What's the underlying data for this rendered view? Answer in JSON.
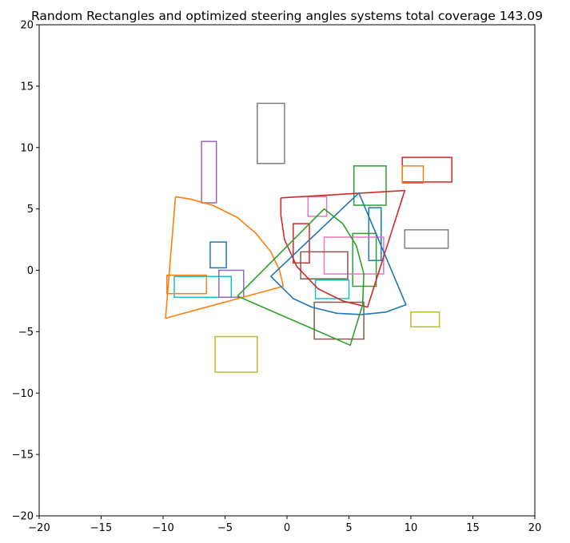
{
  "chart_data": {
    "type": "scatter",
    "title": "Random Rectangles and optimized steering angles systems total coverage 143.09",
    "xlabel": "",
    "ylabel": "",
    "xlim": [
      -20,
      20
    ],
    "ylim": [
      -20,
      20
    ],
    "xticks": [
      -20,
      -15,
      -10,
      -5,
      0,
      5,
      10,
      15,
      20
    ],
    "yticks": [
      -20,
      -15,
      -10,
      -5,
      0,
      5,
      10,
      15,
      20
    ],
    "xtick_labels": [
      "−20",
      "−15",
      "−10",
      "−5",
      "0",
      "5",
      "10",
      "15",
      "20"
    ],
    "ytick_labels": [
      "−20",
      "−15",
      "−10",
      "−5",
      "0",
      "5",
      "10",
      "15",
      "20"
    ],
    "grid": false,
    "colors": {
      "blue": "#1f77b4",
      "orange": "#ff7f0e",
      "green": "#2ca02c",
      "red": "#d62728",
      "purple": "#9467bd",
      "brown": "#8c564b",
      "pink": "#e377c2",
      "gray": "#7f7f7f",
      "olive": "#bcbd22",
      "cyan": "#17becf"
    },
    "rectangles": [
      {
        "x0": 9.3,
        "y0": 7.2,
        "x1": 13.3,
        "y1": 9.2,
        "color": "#d62728"
      },
      {
        "x0": 9.3,
        "y0": 7.1,
        "x1": 11.0,
        "y1": 8.5,
        "color": "#ff7f0e"
      },
      {
        "x0": 5.4,
        "y0": 5.3,
        "x1": 8.0,
        "y1": 8.5,
        "color": "#2ca02c"
      },
      {
        "x0": 1.7,
        "y0": 4.4,
        "x1": 3.2,
        "y1": 6.0,
        "color": "#e377c2"
      },
      {
        "x0": 9.5,
        "y0": 1.8,
        "x1": 13.0,
        "y1": 3.3,
        "color": "#7f7f7f"
      },
      {
        "x0": 6.6,
        "y0": 0.8,
        "x1": 7.6,
        "y1": 5.1,
        "color": "#1f77b4"
      },
      {
        "x0": 0.5,
        "y0": 0.6,
        "x1": 1.8,
        "y1": 3.8,
        "color": "#d62728"
      },
      {
        "x0": 5.3,
        "y0": -1.3,
        "x1": 7.2,
        "y1": 3.0,
        "color": "#2ca02c"
      },
      {
        "x0": 3.0,
        "y0": -0.3,
        "x1": 7.8,
        "y1": 2.7,
        "color": "#e377c2"
      },
      {
        "x0": 1.1,
        "y0": -0.7,
        "x1": 4.9,
        "y1": 1.5,
        "color": "#8c564b"
      },
      {
        "x0": 2.3,
        "y0": -2.3,
        "x1": 5.0,
        "y1": -0.8,
        "color": "#17becf"
      },
      {
        "x0": 2.2,
        "y0": -5.6,
        "x1": 6.2,
        "y1": -2.6,
        "color": "#8c564b"
      },
      {
        "x0": 10.0,
        "y0": -4.6,
        "x1": 12.3,
        "y1": -3.4,
        "color": "#bcbd22"
      },
      {
        "x0": -5.8,
        "y0": -8.3,
        "x1": -2.4,
        "y1": -5.4,
        "color": "#bcbd22"
      },
      {
        "x0": -9.1,
        "y0": -2.2,
        "x1": -4.5,
        "y1": -0.5,
        "color": "#17becf"
      },
      {
        "x0": -9.7,
        "y0": -1.9,
        "x1": -6.5,
        "y1": -0.4,
        "color": "#ff7f0e"
      },
      {
        "x0": -5.5,
        "y0": -2.2,
        "x1": -3.5,
        "y1": 0.0,
        "color": "#9467bd"
      },
      {
        "x0": -6.2,
        "y0": 0.2,
        "x1": -4.9,
        "y1": 2.3,
        "color": "#1f77b4"
      },
      {
        "x0": -6.9,
        "y0": 5.5,
        "x1": -5.7,
        "y1": 10.5,
        "color": "#9467bd"
      },
      {
        "x0": -2.4,
        "y0": 8.7,
        "x1": -0.2,
        "y1": 13.6,
        "color": "#7f7f7f"
      }
    ],
    "sectors": [
      {
        "color": "#ff7f0e",
        "vertex": [
          -0.3,
          -1.3
        ],
        "points": [
          [
            -9.0,
            6.0
          ],
          [
            -7.8,
            5.8
          ],
          [
            -6.0,
            5.3
          ],
          [
            -4.0,
            4.3
          ],
          [
            -2.5,
            3.0
          ],
          [
            -1.3,
            1.5
          ],
          [
            -0.6,
            0.0
          ],
          [
            -0.3,
            -1.3
          ],
          [
            -9.8,
            -3.9
          ],
          [
            -9.0,
            6.0
          ]
        ]
      },
      {
        "color": "#d62728",
        "vertex": [
          6.5,
          -3.0
        ],
        "points": [
          [
            -0.5,
            5.9
          ],
          [
            9.5,
            6.5
          ],
          [
            6.5,
            -3.0
          ],
          [
            4.5,
            -2.5
          ],
          [
            2.5,
            -1.5
          ],
          [
            0.8,
            0.3
          ],
          [
            -0.2,
            2.5
          ],
          [
            -0.5,
            4.5
          ],
          [
            -0.5,
            5.9
          ]
        ]
      },
      {
        "color": "#1f77b4",
        "vertex": [
          5.8,
          6.3
        ],
        "points": [
          [
            5.8,
            6.3
          ],
          [
            9.6,
            -2.8
          ],
          [
            8.0,
            -3.4
          ],
          [
            6.0,
            -3.6
          ],
          [
            4.0,
            -3.5
          ],
          [
            2.0,
            -3.0
          ],
          [
            0.5,
            -2.3
          ],
          [
            -1.3,
            -0.5
          ],
          [
            5.8,
            6.3
          ]
        ]
      },
      {
        "color": "#2ca02c",
        "vertex": [
          -4.0,
          -2.1
        ],
        "points": [
          [
            -4.0,
            -2.1
          ],
          [
            3.0,
            5.0
          ],
          [
            4.5,
            3.8
          ],
          [
            5.6,
            2.0
          ],
          [
            6.2,
            -0.3
          ],
          [
            6.1,
            -2.8
          ],
          [
            5.1,
            -6.1
          ],
          [
            -4.0,
            -2.1
          ]
        ]
      }
    ]
  }
}
